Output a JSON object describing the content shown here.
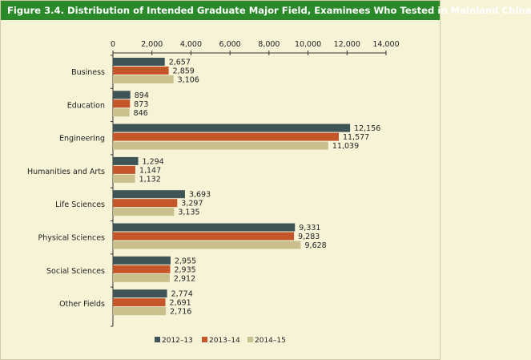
{
  "chart_data": {
    "type": "bar",
    "orientation": "horizontal",
    "title": "Figure 3.4. Distribution of Intended Graduate Major Field, Examinees Who Tested in Mainland China",
    "categories": [
      "Business",
      "Education",
      "Engineering",
      "Humanities and Arts",
      "Life Sciences",
      "Physical Sciences",
      "Social Sciences",
      "Other Fields"
    ],
    "series": [
      {
        "name": "2012–13",
        "color": "#3f5456",
        "values": [
          2657,
          894,
          12156,
          1294,
          3693,
          9331,
          2955,
          2774
        ]
      },
      {
        "name": "2013–14",
        "color": "#c4562a",
        "values": [
          2859,
          873,
          11577,
          1147,
          3297,
          9283,
          2935,
          2691
        ]
      },
      {
        "name": "2014–15",
        "color": "#c9c08e",
        "values": [
          3106,
          846,
          11039,
          1132,
          3135,
          9628,
          2912,
          2716
        ]
      }
    ],
    "value_labels": [
      [
        "2,657",
        "894",
        "12,156",
        "1,294",
        "3,693",
        "9,331",
        "2,955",
        "2,774"
      ],
      [
        "2,859",
        "873",
        "11,577",
        "1,147",
        "3,297",
        "9,283",
        "2,935",
        "2,691"
      ],
      [
        "3,106",
        "846",
        "11,039",
        "1,132",
        "3,135",
        "9,628",
        "2,912",
        "2,716"
      ]
    ],
    "xlim": [
      0,
      14000
    ],
    "x_ticks": [
      0,
      2000,
      4000,
      6000,
      8000,
      10000,
      12000,
      14000
    ],
    "x_tick_labels": [
      "0",
      "2,000",
      "4,000",
      "6,000",
      "8,000",
      "10,000",
      "12,000",
      "14,000"
    ],
    "x_axis_position": "top",
    "grid": false,
    "legend_position": "bottom"
  }
}
